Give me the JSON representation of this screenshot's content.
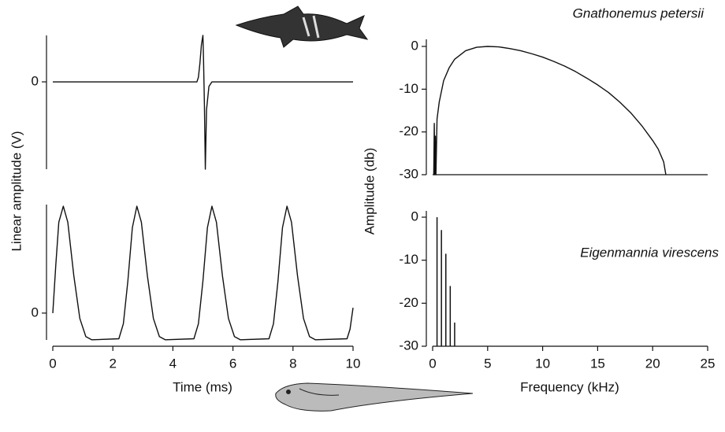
{
  "chart_data": [
    {
      "type": "line",
      "y_label": "Linear amplitude (V)",
      "color": "#111111",
      "xlim": [
        0,
        10
      ],
      "ylim": [
        -1.88,
        1.0
      ],
      "yticks": [
        0
      ],
      "x": [
        0,
        4.8,
        4.85,
        4.9,
        4.95,
        5.0,
        5.02,
        5.05,
        5.08,
        5.12,
        5.2,
        5.3,
        10
      ],
      "values": [
        0,
        0,
        0.1,
        0.4,
        0.8,
        1.0,
        0.5,
        -0.5,
        -1.88,
        -0.6,
        -0.1,
        0,
        0
      ]
    },
    {
      "type": "line",
      "x_label": "Time (ms)",
      "color": "#111111",
      "xlim": [
        0,
        10
      ],
      "xticks": [
        0,
        2,
        4,
        6,
        8,
        10
      ],
      "ylim": [
        -0.31,
        1.03
      ],
      "yticks": [
        0
      ],
      "x": [
        0,
        0.1,
        0.2,
        0.35,
        0.5,
        0.7,
        0.9,
        1.1,
        1.3,
        2.2,
        2.35,
        2.5,
        2.65,
        2.8,
        2.95,
        3.15,
        3.35,
        3.55,
        3.75,
        4.7,
        4.85,
        5.0,
        5.15,
        5.3,
        5.45,
        5.65,
        5.85,
        6.05,
        6.25,
        7.2,
        7.35,
        7.5,
        7.65,
        7.8,
        7.95,
        8.15,
        8.35,
        8.55,
        8.75,
        9.8,
        9.9,
        10
      ],
      "values": [
        0,
        0.45,
        0.85,
        1.0,
        0.85,
        0.35,
        -0.05,
        -0.22,
        -0.25,
        -0.24,
        -0.1,
        0.3,
        0.8,
        1.0,
        0.85,
        0.35,
        -0.05,
        -0.22,
        -0.25,
        -0.24,
        -0.1,
        0.3,
        0.8,
        1.0,
        0.85,
        0.35,
        -0.05,
        -0.22,
        -0.25,
        -0.24,
        -0.1,
        0.3,
        0.8,
        1.0,
        0.85,
        0.35,
        -0.05,
        -0.22,
        -0.25,
        -0.24,
        -0.15,
        0.05
      ]
    },
    {
      "type": "line",
      "annotation": "Gnathonemus petersii",
      "y_label": "Amplitude (db)",
      "color": "#111111",
      "xlim": [
        0,
        25
      ],
      "ylim": [
        -30,
        0
      ],
      "yticks": [
        0,
        -10,
        -20,
        -30
      ],
      "x": [
        0.1,
        0.15,
        0.2,
        0.25,
        0.3,
        0.4,
        0.6,
        1,
        1.5,
        2,
        3,
        4,
        5,
        6,
        7,
        8,
        9,
        10,
        11,
        12,
        13,
        14,
        15,
        16,
        17,
        18,
        19,
        20,
        20.5,
        21,
        21.2
      ],
      "values": [
        -30,
        -18,
        -30,
        -21,
        -30,
        -17,
        -13,
        -8,
        -5,
        -3,
        -1,
        -0.2,
        0,
        -0.1,
        -0.5,
        -1,
        -1.7,
        -2.5,
        -3.5,
        -4.6,
        -5.9,
        -7.4,
        -9,
        -10.8,
        -13,
        -15.5,
        -18.5,
        -22,
        -24,
        -27,
        -30
      ]
    },
    {
      "type": "bar",
      "annotation": "Eigenmannia virescens",
      "x_label": "Frequency (kHz)",
      "color": "#111111",
      "xlim": [
        0,
        25
      ],
      "xticks": [
        0,
        5,
        10,
        15,
        20,
        25
      ],
      "ylim": [
        -30,
        0
      ],
      "yticks": [
        0,
        -10,
        -20,
        -30
      ],
      "x": [
        0.4,
        0.8,
        1.2,
        1.6,
        2.0
      ],
      "values": [
        0,
        -3,
        -8.5,
        -16,
        -24.5
      ]
    }
  ]
}
